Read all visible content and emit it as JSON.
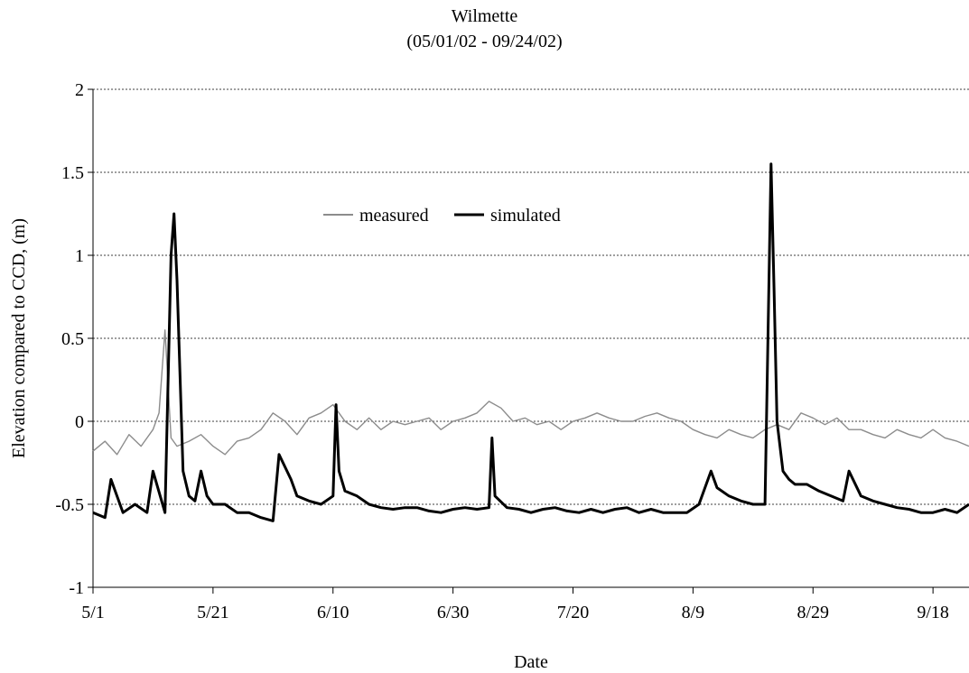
{
  "chart_data": {
    "type": "line",
    "title": "Wilmette",
    "subtitle": "(05/01/02 - 09/24/02)",
    "xlabel": "Date",
    "ylabel": "Elevation compared to CCD, (m)",
    "ylim": [
      -1,
      2
    ],
    "yticks": [
      -1,
      -0.5,
      0,
      0.5,
      1,
      1.5,
      2
    ],
    "ytick_labels": [
      "-1",
      "-0.5",
      "0",
      "0.5",
      "1",
      "1.5",
      "2"
    ],
    "xlim": [
      "2002-05-01",
      "2002-09-24"
    ],
    "xticks": [
      "2002-05-01",
      "2002-05-21",
      "2002-06-10",
      "2002-06-30",
      "2002-07-20",
      "2002-08-09",
      "2002-08-29",
      "2002-09-18"
    ],
    "xtick_labels": [
      "5/1",
      "5/21",
      "6/10",
      "6/30",
      "7/20",
      "8/9",
      "8/29",
      "9/18"
    ],
    "grid": "horizontal dashed",
    "legend_position": "upper-left-center",
    "series": [
      {
        "name": "measured",
        "color": "#8c8c8c",
        "x": [
          "2002-05-01",
          "2002-05-03",
          "2002-05-05",
          "2002-05-07",
          "2002-05-09",
          "2002-05-11",
          "2002-05-12",
          "2002-05-13",
          "2002-05-14",
          "2002-05-15",
          "2002-05-17",
          "2002-05-19",
          "2002-05-21",
          "2002-05-23",
          "2002-05-25",
          "2002-05-27",
          "2002-05-29",
          "2002-05-31",
          "2002-06-02",
          "2002-06-04",
          "2002-06-06",
          "2002-06-08",
          "2002-06-10",
          "2002-06-12",
          "2002-06-14",
          "2002-06-16",
          "2002-06-18",
          "2002-06-20",
          "2002-06-22",
          "2002-06-24",
          "2002-06-26",
          "2002-06-28",
          "2002-06-30",
          "2002-07-02",
          "2002-07-04",
          "2002-07-06",
          "2002-07-08",
          "2002-07-10",
          "2002-07-12",
          "2002-07-14",
          "2002-07-16",
          "2002-07-18",
          "2002-07-20",
          "2002-07-22",
          "2002-07-24",
          "2002-07-26",
          "2002-07-28",
          "2002-07-30",
          "2002-08-01",
          "2002-08-03",
          "2002-08-05",
          "2002-08-07",
          "2002-08-09",
          "2002-08-11",
          "2002-08-13",
          "2002-08-15",
          "2002-08-17",
          "2002-08-19",
          "2002-08-21",
          "2002-08-23",
          "2002-08-25",
          "2002-08-27",
          "2002-08-29",
          "2002-08-31",
          "2002-09-02",
          "2002-09-04",
          "2002-09-06",
          "2002-09-08",
          "2002-09-10",
          "2002-09-12",
          "2002-09-14",
          "2002-09-16",
          "2002-09-18",
          "2002-09-20",
          "2002-09-22",
          "2002-09-24"
        ],
        "values": [
          -0.18,
          -0.12,
          -0.2,
          -0.08,
          -0.15,
          -0.05,
          0.05,
          0.55,
          -0.1,
          -0.15,
          -0.12,
          -0.08,
          -0.15,
          -0.2,
          -0.12,
          -0.1,
          -0.05,
          0.05,
          0.0,
          -0.08,
          0.02,
          0.05,
          0.1,
          0.0,
          -0.05,
          0.02,
          -0.05,
          0.0,
          -0.02,
          0.0,
          0.02,
          -0.05,
          0.0,
          0.02,
          0.05,
          0.12,
          0.08,
          0.0,
          0.02,
          -0.02,
          0.0,
          -0.05,
          0.0,
          0.02,
          0.05,
          0.02,
          0.0,
          0.0,
          0.03,
          0.05,
          0.02,
          0.0,
          -0.05,
          -0.08,
          -0.1,
          -0.05,
          -0.08,
          -0.1,
          -0.05,
          -0.02,
          -0.05,
          0.05,
          0.02,
          -0.02,
          0.02,
          -0.05,
          -0.05,
          -0.08,
          -0.1,
          -0.05,
          -0.08,
          -0.1,
          -0.05,
          -0.1,
          -0.12,
          -0.15
        ]
      },
      {
        "name": "simulated",
        "color": "#000000",
        "x": [
          "2002-05-01",
          "2002-05-03",
          "2002-05-04",
          "2002-05-06",
          "2002-05-08",
          "2002-05-10",
          "2002-05-11",
          "2002-05-13",
          "2002-05-14",
          "2002-05-14T12",
          "2002-05-15",
          "2002-05-16",
          "2002-05-17",
          "2002-05-18",
          "2002-05-19",
          "2002-05-20",
          "2002-05-21",
          "2002-05-23",
          "2002-05-25",
          "2002-05-27",
          "2002-05-29",
          "2002-05-31",
          "2002-06-01",
          "2002-06-03",
          "2002-06-04",
          "2002-06-06",
          "2002-06-08",
          "2002-06-10",
          "2002-06-10T12",
          "2002-06-11",
          "2002-06-12",
          "2002-06-14",
          "2002-06-16",
          "2002-06-18",
          "2002-06-20",
          "2002-06-22",
          "2002-06-24",
          "2002-06-26",
          "2002-06-28",
          "2002-06-30",
          "2002-07-02",
          "2002-07-04",
          "2002-07-06",
          "2002-07-06T12",
          "2002-07-07",
          "2002-07-09",
          "2002-07-11",
          "2002-07-13",
          "2002-07-15",
          "2002-07-17",
          "2002-07-19",
          "2002-07-21",
          "2002-07-23",
          "2002-07-25",
          "2002-07-27",
          "2002-07-29",
          "2002-07-31",
          "2002-08-02",
          "2002-08-04",
          "2002-08-06",
          "2002-08-08",
          "2002-08-10",
          "2002-08-12",
          "2002-08-13",
          "2002-08-15",
          "2002-08-17",
          "2002-08-19",
          "2002-08-21",
          "2002-08-22",
          "2002-08-22T12",
          "2002-08-23",
          "2002-08-24",
          "2002-08-25",
          "2002-08-26",
          "2002-08-28",
          "2002-08-30",
          "2002-09-01",
          "2002-09-03",
          "2002-09-04",
          "2002-09-06",
          "2002-09-08",
          "2002-09-10",
          "2002-09-12",
          "2002-09-14",
          "2002-09-16",
          "2002-09-18",
          "2002-09-20",
          "2002-09-22",
          "2002-09-24"
        ],
        "values": [
          -0.55,
          -0.58,
          -0.35,
          -0.55,
          -0.5,
          -0.55,
          -0.3,
          -0.55,
          1.0,
          1.25,
          0.85,
          -0.3,
          -0.45,
          -0.48,
          -0.3,
          -0.45,
          -0.5,
          -0.5,
          -0.55,
          -0.55,
          -0.58,
          -0.6,
          -0.2,
          -0.35,
          -0.45,
          -0.48,
          -0.5,
          -0.45,
          0.1,
          -0.3,
          -0.42,
          -0.45,
          -0.5,
          -0.52,
          -0.53,
          -0.52,
          -0.52,
          -0.54,
          -0.55,
          -0.53,
          -0.52,
          -0.53,
          -0.52,
          -0.1,
          -0.45,
          -0.52,
          -0.53,
          -0.55,
          -0.53,
          -0.52,
          -0.54,
          -0.55,
          -0.53,
          -0.55,
          -0.53,
          -0.52,
          -0.55,
          -0.53,
          -0.55,
          -0.55,
          -0.55,
          -0.5,
          -0.3,
          -0.4,
          -0.45,
          -0.48,
          -0.5,
          -0.5,
          1.55,
          0.8,
          0.0,
          -0.3,
          -0.35,
          -0.38,
          -0.38,
          -0.42,
          -0.45,
          -0.48,
          -0.3,
          -0.45,
          -0.48,
          -0.5,
          -0.52,
          -0.53,
          -0.55,
          -0.55,
          -0.53,
          -0.55,
          -0.5
        ]
      }
    ]
  }
}
